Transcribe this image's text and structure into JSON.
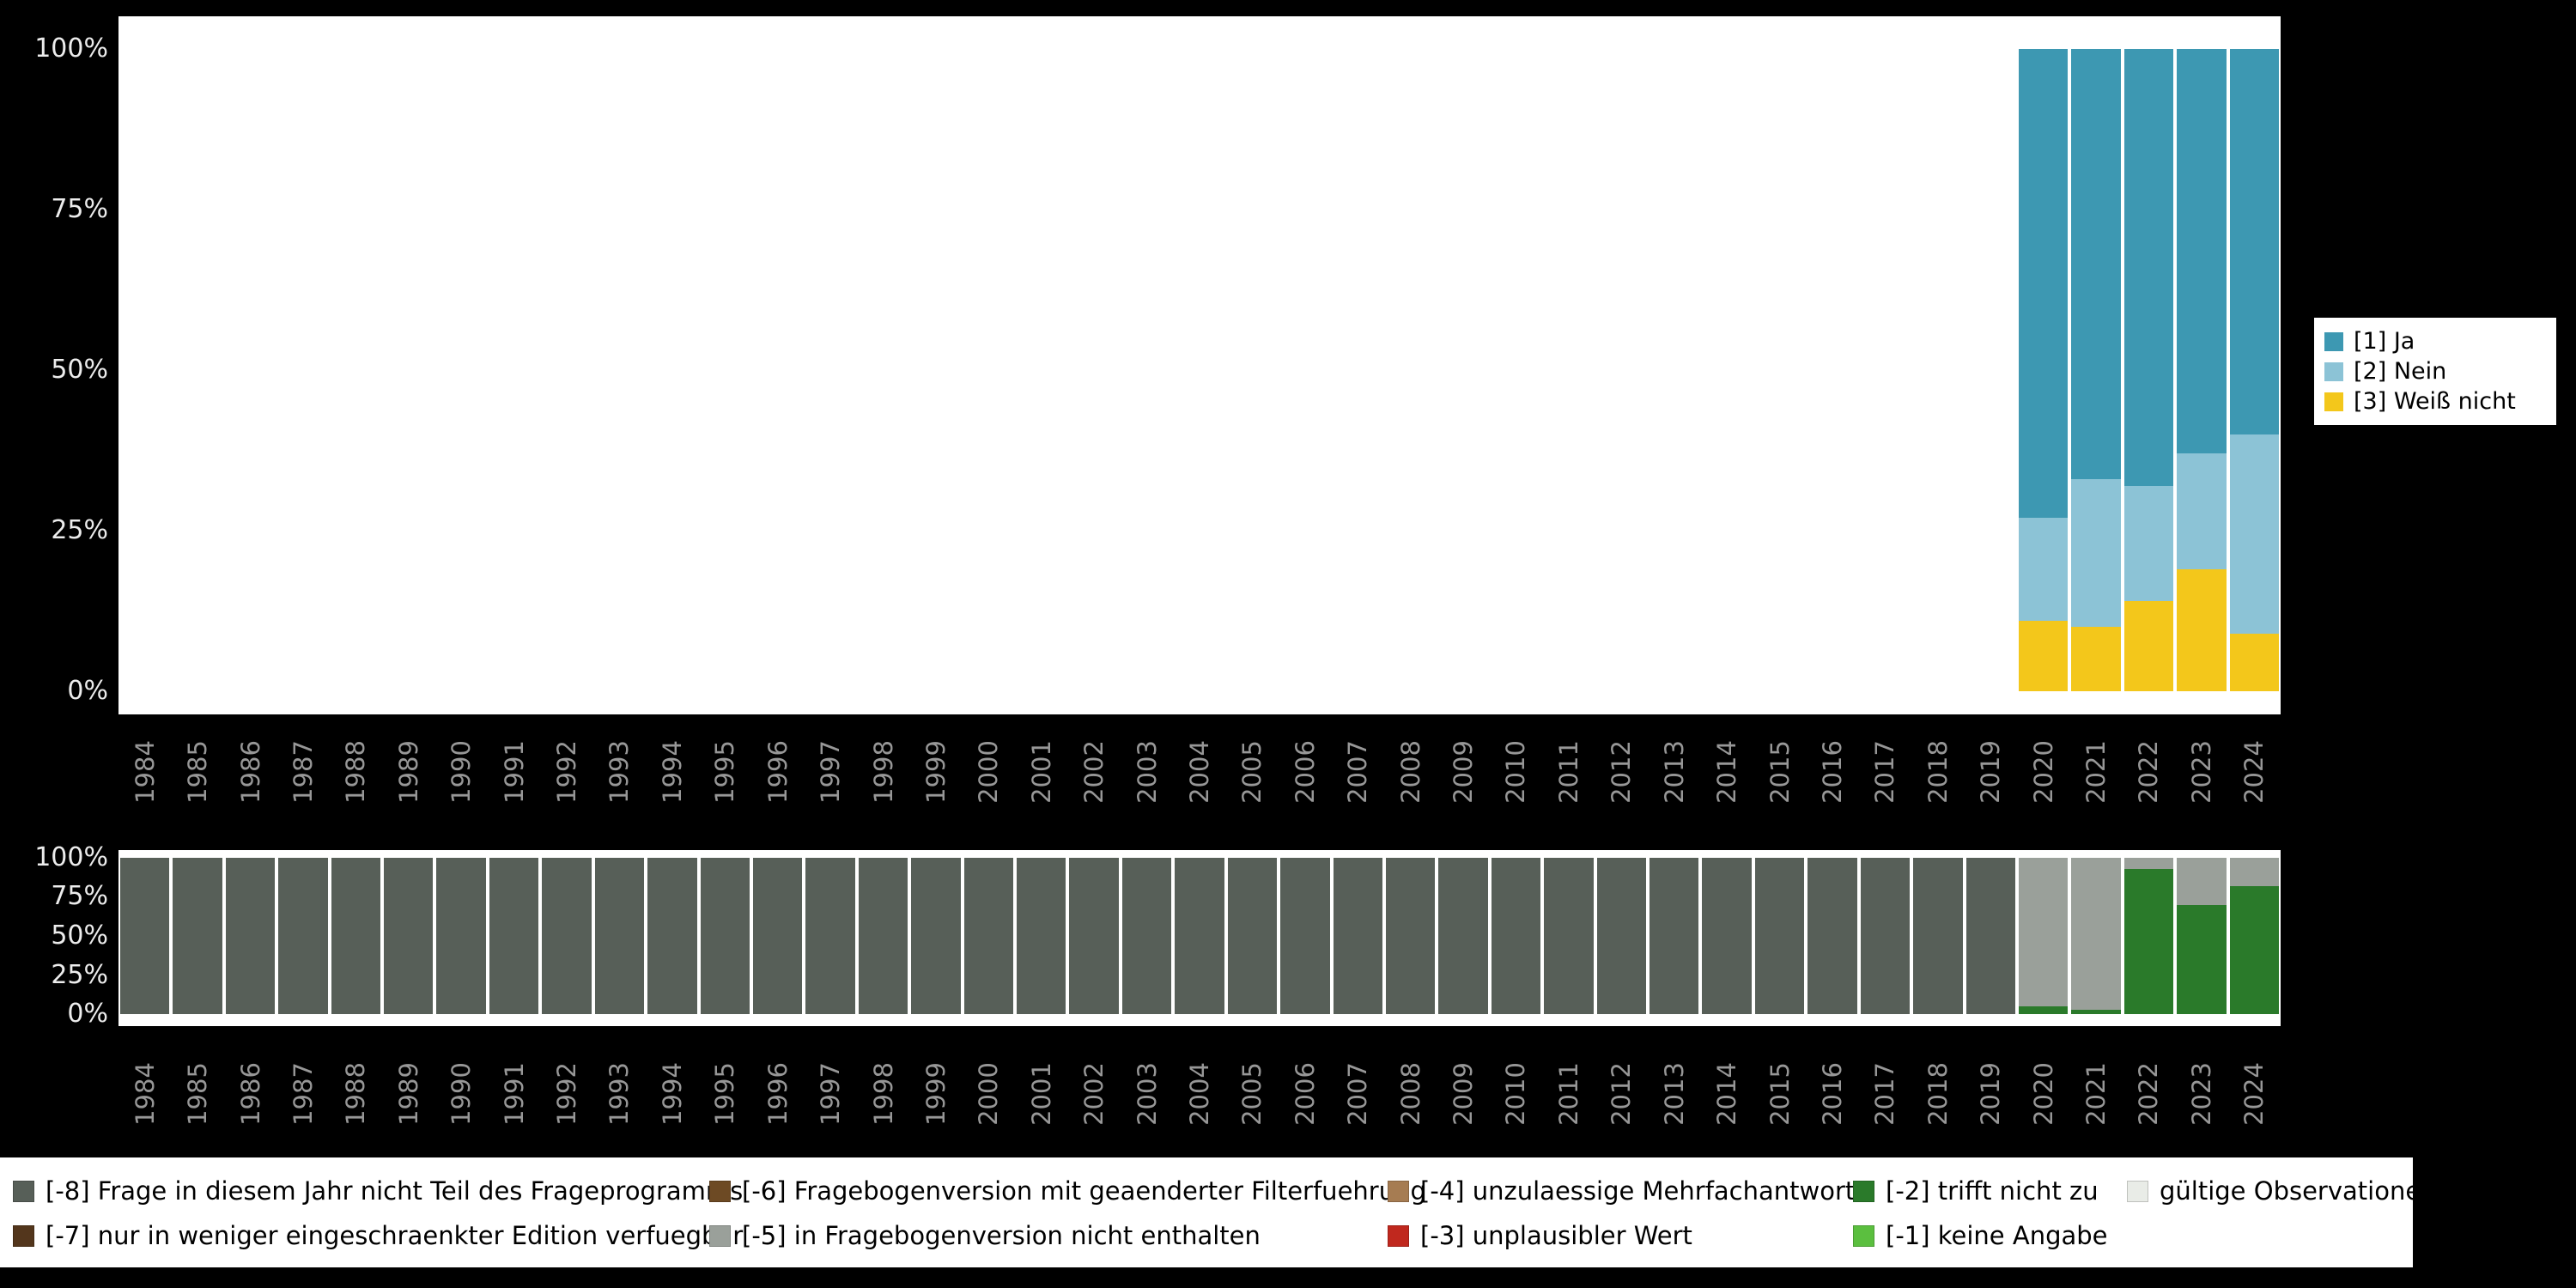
{
  "background_color": "#000000",
  "panel_color": "#ffffff",
  "axis": {
    "years": [
      "1984",
      "1985",
      "1986",
      "1987",
      "1988",
      "1989",
      "1990",
      "1991",
      "1992",
      "1993",
      "1994",
      "1995",
      "1996",
      "1997",
      "1998",
      "1999",
      "2000",
      "2001",
      "2002",
      "2003",
      "2004",
      "2005",
      "2006",
      "2007",
      "2008",
      "2009",
      "2010",
      "2011",
      "2012",
      "2013",
      "2014",
      "2015",
      "2016",
      "2017",
      "2018",
      "2019",
      "2020",
      "2021",
      "2022",
      "2023",
      "2024"
    ],
    "percent_ticks": [
      "100%",
      "75%",
      "50%",
      "25%",
      "0%"
    ]
  },
  "top_legend": {
    "items": [
      {
        "label": "[1] Ja",
        "color": "#3d98b2"
      },
      {
        "label": "[2] Nein",
        "color": "#8cc3d6"
      },
      {
        "label": "[3] Weiß nicht",
        "color": "#f3c71b"
      }
    ]
  },
  "missing_legend": {
    "rows": [
      [
        {
          "label": "[-8] Frage in diesem Jahr nicht Teil des Frageprogramms",
          "color": "#575f58"
        },
        {
          "label": "[-6] Fragebogenversion mit geaenderter Filterfuehrung",
          "color": "#6d4a24"
        },
        {
          "label": "[-4] unzulaessige Mehrfachantwort",
          "color": "#a67c52"
        },
        {
          "label": "[-2] trifft nicht zu",
          "color": "#2a7a2a"
        },
        {
          "label": "gültige Observationen",
          "color": "#e9ece7"
        }
      ],
      [
        {
          "label": "[-7] nur in weniger eingeschraenkter Edition verfuegbar",
          "color": "#53361c"
        },
        {
          "label": "[-5] in Fragebogenversion nicht enthalten",
          "color": "#9aa09a"
        },
        {
          "label": "[-3] unplausibler Wert",
          "color": "#c0281e"
        },
        {
          "label": "[-1] keine Angabe",
          "color": "#5bbf3f"
        }
      ]
    ]
  },
  "chart_data": [
    {
      "type": "bar",
      "stacked": true,
      "title": "",
      "xlabel": "",
      "ylabel": "",
      "ylim": [
        0,
        100
      ],
      "yticks": [
        "0%",
        "25%",
        "50%",
        "75%",
        "100%"
      ],
      "grid": false,
      "legend_position": "right",
      "categories": [
        "1984",
        "1985",
        "1986",
        "1987",
        "1988",
        "1989",
        "1990",
        "1991",
        "1992",
        "1993",
        "1994",
        "1995",
        "1996",
        "1997",
        "1998",
        "1999",
        "2000",
        "2001",
        "2002",
        "2003",
        "2004",
        "2005",
        "2006",
        "2007",
        "2008",
        "2009",
        "2010",
        "2011",
        "2012",
        "2013",
        "2014",
        "2015",
        "2016",
        "2017",
        "2018",
        "2019",
        "2020",
        "2021",
        "2022",
        "2023",
        "2024"
      ],
      "stack_order": "bottom-to-top",
      "series": [
        {
          "name": "[3] Weiß nicht",
          "color": "#f3c71b",
          "values": [
            0,
            0,
            0,
            0,
            0,
            0,
            0,
            0,
            0,
            0,
            0,
            0,
            0,
            0,
            0,
            0,
            0,
            0,
            0,
            0,
            0,
            0,
            0,
            0,
            0,
            0,
            0,
            0,
            0,
            0,
            0,
            0,
            0,
            0,
            0,
            0,
            11,
            10,
            14,
            19,
            9
          ]
        },
        {
          "name": "[2] Nein",
          "color": "#8cc3d6",
          "values": [
            0,
            0,
            0,
            0,
            0,
            0,
            0,
            0,
            0,
            0,
            0,
            0,
            0,
            0,
            0,
            0,
            0,
            0,
            0,
            0,
            0,
            0,
            0,
            0,
            0,
            0,
            0,
            0,
            0,
            0,
            0,
            0,
            0,
            0,
            0,
            0,
            16,
            23,
            18,
            18,
            31
          ]
        },
        {
          "name": "[1] Ja",
          "color": "#3d98b2",
          "values": [
            0,
            0,
            0,
            0,
            0,
            0,
            0,
            0,
            0,
            0,
            0,
            0,
            0,
            0,
            0,
            0,
            0,
            0,
            0,
            0,
            0,
            0,
            0,
            0,
            0,
            0,
            0,
            0,
            0,
            0,
            0,
            0,
            0,
            0,
            0,
            0,
            73,
            67,
            68,
            63,
            60
          ]
        }
      ]
    },
    {
      "type": "bar",
      "stacked": true,
      "title": "",
      "xlabel": "",
      "ylabel": "",
      "ylim": [
        0,
        100
      ],
      "yticks": [
        "0%",
        "25%",
        "50%",
        "75%",
        "100%"
      ],
      "grid": false,
      "legend_position": "bottom",
      "categories": [
        "1984",
        "1985",
        "1986",
        "1987",
        "1988",
        "1989",
        "1990",
        "1991",
        "1992",
        "1993",
        "1994",
        "1995",
        "1996",
        "1997",
        "1998",
        "1999",
        "2000",
        "2001",
        "2002",
        "2003",
        "2004",
        "2005",
        "2006",
        "2007",
        "2008",
        "2009",
        "2010",
        "2011",
        "2012",
        "2013",
        "2014",
        "2015",
        "2016",
        "2017",
        "2018",
        "2019",
        "2020",
        "2021",
        "2022",
        "2023",
        "2024"
      ],
      "stack_order": "bottom-to-top",
      "series": [
        {
          "name": "[-2] trifft nicht zu",
          "color": "#2a7a2a",
          "values": [
            0,
            0,
            0,
            0,
            0,
            0,
            0,
            0,
            0,
            0,
            0,
            0,
            0,
            0,
            0,
            0,
            0,
            0,
            0,
            0,
            0,
            0,
            0,
            0,
            0,
            0,
            0,
            0,
            0,
            0,
            0,
            0,
            0,
            0,
            0,
            0,
            5,
            3,
            93,
            70,
            82
          ]
        },
        {
          "name": "[-5] in Fragebogenversion nicht enthalten",
          "color": "#9aa09a",
          "values": [
            0,
            0,
            0,
            0,
            0,
            0,
            0,
            0,
            0,
            0,
            0,
            0,
            0,
            0,
            0,
            0,
            0,
            0,
            0,
            0,
            0,
            0,
            0,
            0,
            0,
            0,
            0,
            0,
            0,
            0,
            0,
            0,
            0,
            0,
            0,
            0,
            95,
            97,
            7,
            30,
            18
          ]
        },
        {
          "name": "[-8] Frage in diesem Jahr nicht Teil des Frageprogramms",
          "color": "#575f58",
          "values": [
            100,
            100,
            100,
            100,
            100,
            100,
            100,
            100,
            100,
            100,
            100,
            100,
            100,
            100,
            100,
            100,
            100,
            100,
            100,
            100,
            100,
            100,
            100,
            100,
            100,
            100,
            100,
            100,
            100,
            100,
            100,
            100,
            100,
            100,
            100,
            100,
            0,
            0,
            0,
            0,
            0
          ]
        }
      ]
    }
  ]
}
